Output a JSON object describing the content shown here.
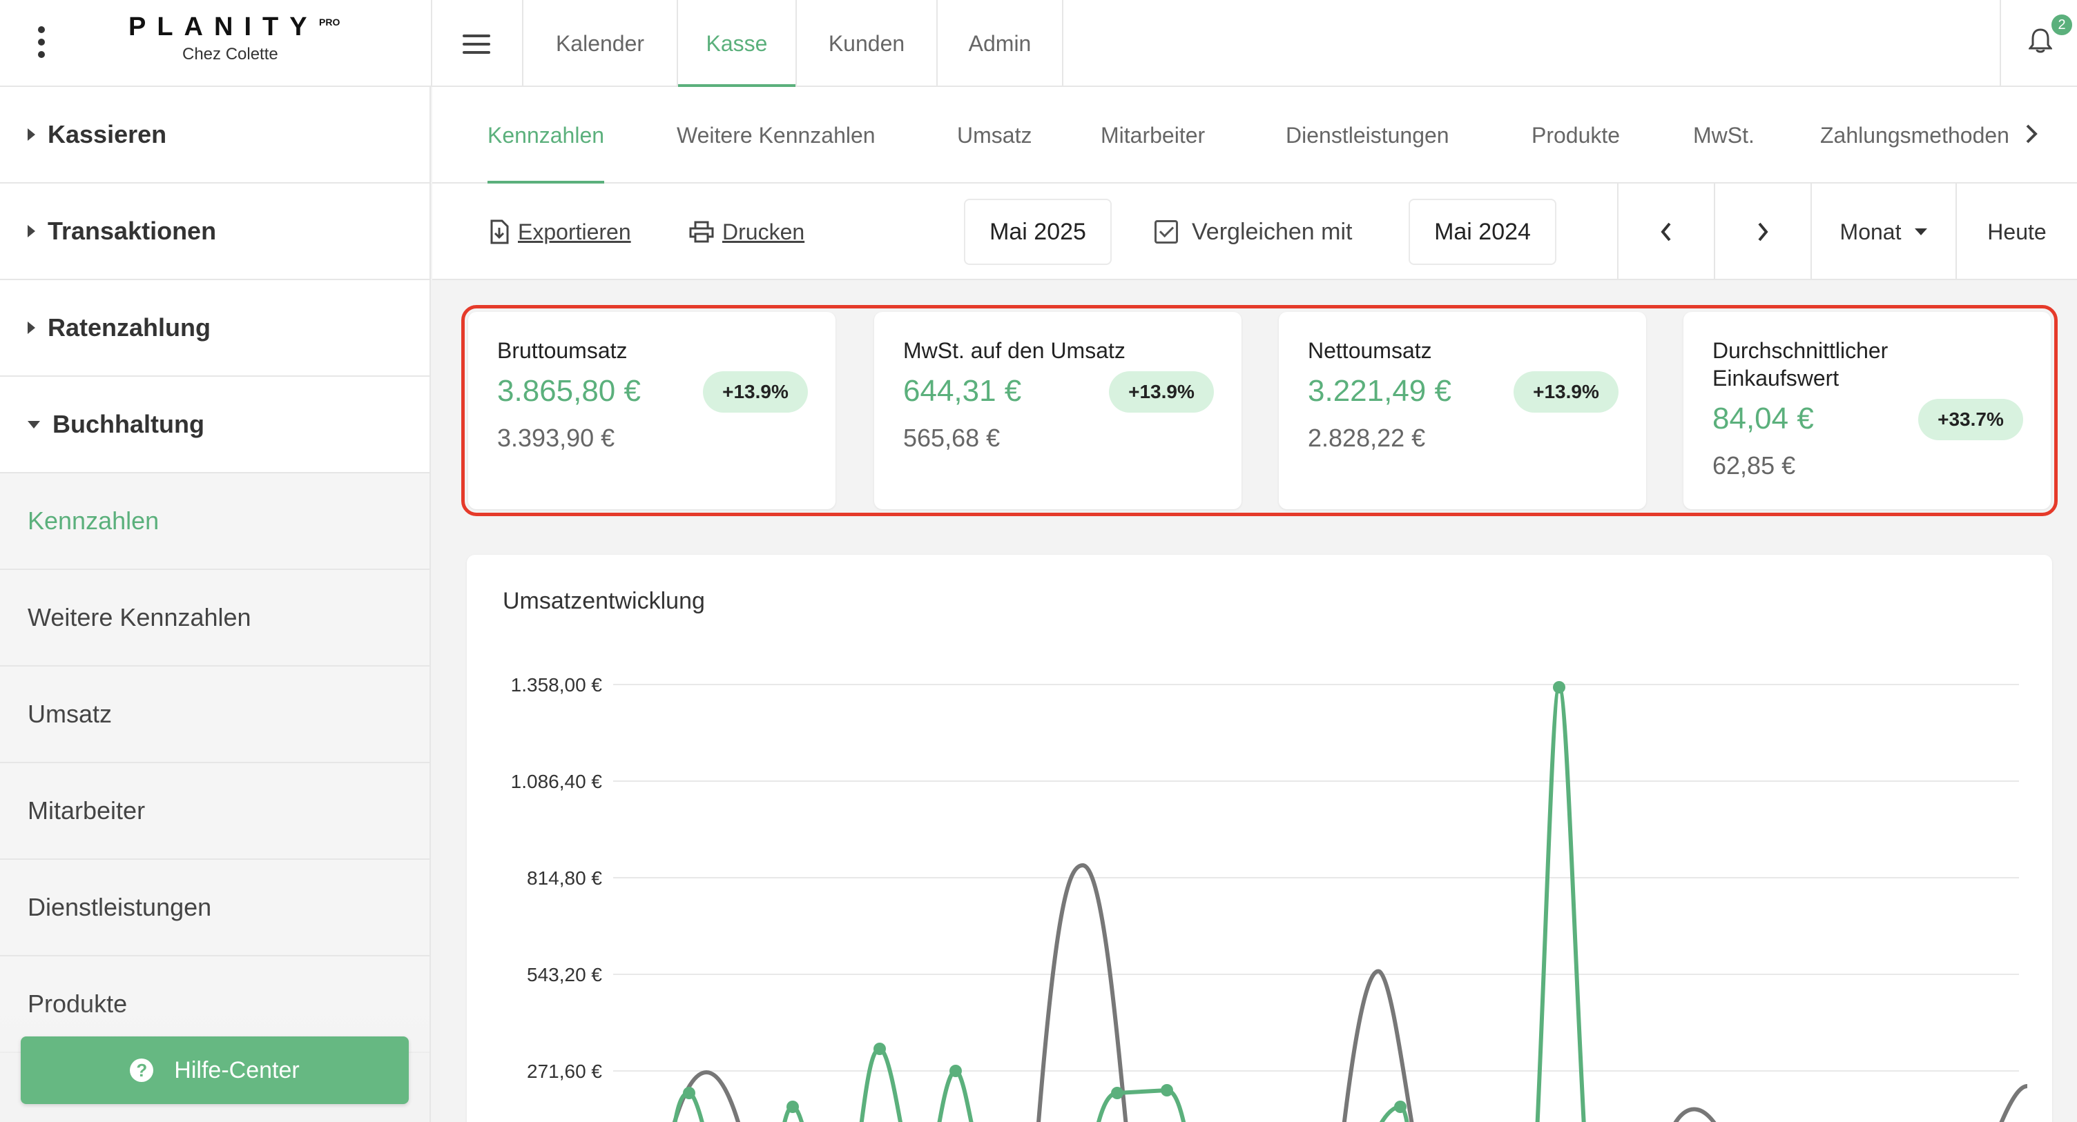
{
  "brand": {
    "name": "PLANITY",
    "pro": "PRO",
    "salon": "Chez Colette"
  },
  "main_tabs": [
    {
      "label": "Kalender"
    },
    {
      "label": "Kasse"
    },
    {
      "label": "Kunden"
    },
    {
      "label": "Admin"
    }
  ],
  "notifications": {
    "count": "2"
  },
  "sidebar": {
    "sections": [
      {
        "label": "Kassieren"
      },
      {
        "label": "Transaktionen"
      },
      {
        "label": "Ratenzahlung"
      },
      {
        "label": "Buchhaltung"
      }
    ],
    "sub_items": [
      {
        "label": "Kennzahlen"
      },
      {
        "label": "Weitere Kennzahlen"
      },
      {
        "label": "Umsatz"
      },
      {
        "label": "Mitarbeiter"
      },
      {
        "label": "Dienstleistungen"
      },
      {
        "label": "Produkte"
      }
    ],
    "help_label": "Hilfe-Center"
  },
  "sub_tabs": [
    {
      "label": "Kennzahlen"
    },
    {
      "label": "Weitere Kennzahlen"
    },
    {
      "label": "Umsatz"
    },
    {
      "label": "Mitarbeiter"
    },
    {
      "label": "Dienstleistungen"
    },
    {
      "label": "Produkte"
    },
    {
      "label": "MwSt."
    },
    {
      "label": "Zahlungsmethoden"
    }
  ],
  "toolbar": {
    "export_label": "Exportieren",
    "print_label": "Drucken",
    "period": "Mai 2025",
    "compare_label": "Vergleichen mit",
    "compare_period": "Mai 2024",
    "range_label": "Monat",
    "today_label": "Heute"
  },
  "kpis": [
    {
      "title": "Bruttoumsatz",
      "value": "3.865,80 €",
      "previous": "3.393,90 €",
      "change": "+13.9%"
    },
    {
      "title": "MwSt. auf den Umsatz",
      "value": "644,31 €",
      "previous": "565,68 €",
      "change": "+13.9%"
    },
    {
      "title": "Nettoumsatz",
      "value": "3.221,49 €",
      "previous": "2.828,22 €",
      "change": "+13.9%"
    },
    {
      "title": "Durchschnittlicher Einkaufswert",
      "value": "84,04 €",
      "previous": "62,85 €",
      "change": "+33.7%"
    }
  ],
  "colors": {
    "accent": "#5bb07c",
    "comparison": "#777777",
    "highlight": "#e53a2a"
  },
  "chart_data": {
    "type": "line",
    "title": "Umsatzentwicklung",
    "y_ticks": [
      "1.358,00 €",
      "1.086,40 €",
      "814,80 €",
      "543,20 €",
      "271,60 €"
    ],
    "ylim": [
      0,
      1358
    ],
    "series": [
      {
        "color": "#5bb07c",
        "values": [
          0,
          0,
          0,
          0,
          0,
          265,
          0,
          0,
          0,
          0,
          0,
          0,
          0,
          0,
          0,
          90,
          0,
          0,
          0,
          0,
          0,
          400,
          0,
          0,
          0,
          0,
          0,
          0,
          0,
          0,
          0,
          280,
          0,
          0,
          0,
          0,
          0,
          0,
          0,
          0,
          0,
          0,
          0,
          0,
          0,
          0,
          0,
          0,
          0,
          0,
          0,
          0,
          0,
          0,
          0,
          0,
          0,
          0,
          0,
          0,
          0,
          0,
          0,
          0,
          0,
          0,
          0,
          0,
          0,
          0,
          0,
          0,
          0,
          0,
          0,
          0,
          0,
          0,
          0,
          0,
          0,
          0,
          0,
          0,
          0,
          0,
          0,
          0,
          0,
          0,
          0,
          0,
          0,
          0,
          0,
          0,
          0,
          0,
          0,
          0,
          0,
          0,
          0,
          0,
          0,
          0,
          0,
          0,
          0,
          0,
          0,
          0,
          0,
          0,
          0,
          0,
          0,
          0,
          0,
          0,
          0,
          0,
          0,
          0,
          0,
          0,
          0,
          0,
          0,
          0,
          0,
          0,
          0,
          0,
          0,
          0,
          0,
          0,
          0,
          0,
          0,
          0,
          0,
          0,
          0,
          0,
          0,
          0,
          0,
          0,
          0,
          0,
          0,
          0,
          0,
          0,
          0,
          0,
          0,
          0,
          0,
          0,
          0,
          0,
          0,
          0,
          0,
          0,
          0,
          0,
          0,
          0,
          0,
          0,
          0,
          0,
          0,
          0,
          0,
          0,
          0,
          0,
          0,
          0,
          0,
          0,
          0,
          0,
          0,
          0,
          0,
          0,
          0,
          0,
          0,
          0,
          0,
          0,
          0,
          0,
          0,
          0,
          0,
          0,
          0,
          0,
          0,
          0,
          0,
          0,
          0,
          0,
          0,
          0,
          0,
          0,
          0,
          0,
          0,
          0,
          0,
          0,
          0,
          0,
          0,
          0,
          0,
          0,
          0,
          0,
          0,
          0,
          0,
          0,
          0,
          0,
          0,
          0,
          0,
          0,
          0,
          0,
          0,
          0,
          0,
          0,
          0,
          0,
          0,
          0,
          0,
          0,
          0,
          0,
          0,
          0,
          0,
          0,
          0,
          0,
          0,
          0,
          0,
          0,
          0,
          0,
          0,
          0,
          0,
          0,
          0,
          0,
          0,
          0,
          0,
          0,
          0,
          0,
          0,
          0,
          0,
          0,
          0,
          0,
          0,
          0,
          0,
          0,
          0,
          0,
          0,
          0,
          0,
          0,
          0,
          0,
          0,
          0,
          0,
          0,
          0,
          0,
          0,
          0,
          0,
          0,
          0,
          0,
          0,
          0,
          0,
          0,
          0,
          0,
          0,
          0,
          0,
          0,
          0,
          0,
          0,
          0,
          0,
          0,
          0,
          0,
          0,
          0,
          0,
          0,
          0,
          0,
          0,
          0,
          0,
          0,
          0
        ]
      }
    ]
  }
}
